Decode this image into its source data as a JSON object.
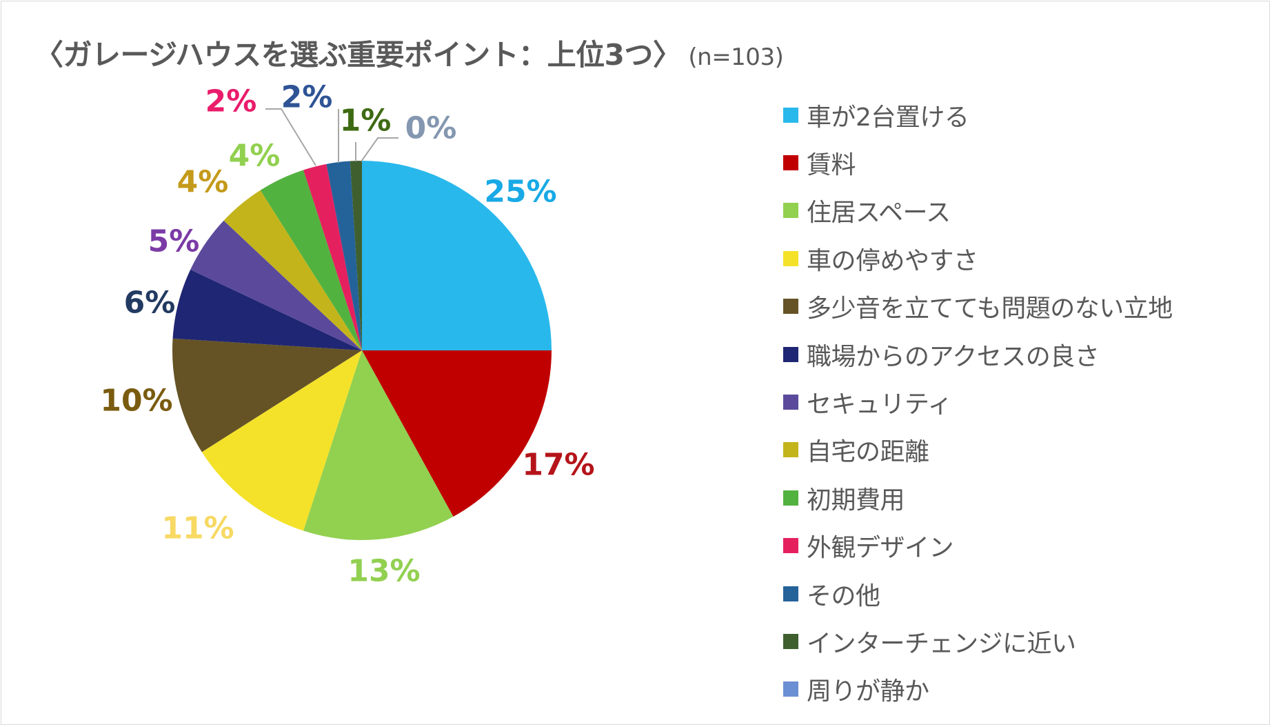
{
  "chart_data": {
    "type": "pie",
    "title": "〈ガレージハウスを選ぶ重要ポイント：上位3つ〉",
    "subtitle": "(n=103)",
    "categories": [
      "車が2台置ける",
      "賃料",
      "住居スペース",
      "車の停めやすさ",
      "多少音を立てても問題のない立地",
      "職場からのアクセスの良さ",
      "セキュリティ",
      "自宅の距離",
      "初期費用",
      "外観デザイン",
      "その他",
      "インターチェンジに近い",
      "周りが静か"
    ],
    "values": [
      25,
      17,
      13,
      11,
      10,
      6,
      5,
      4,
      4,
      2,
      2,
      1,
      0
    ],
    "labels": [
      "25%",
      "17%",
      "13%",
      "11%",
      "10%",
      "6%",
      "5%",
      "4%",
      "4%",
      "2%",
      "2%",
      "1%",
      "0%"
    ],
    "colors": [
      "#29b8ec",
      "#c00000",
      "#92d050",
      "#f4e22a",
      "#655325",
      "#1f2673",
      "#5b4a9b",
      "#c4b41c",
      "#52b23f",
      "#e5205f",
      "#24629a",
      "#3f5f2f",
      "#6a8fd3"
    ],
    "label_colors": [
      "#18a9e6",
      "#b5141a",
      "#92d050",
      "#f7d963",
      "#7a5c10",
      "#223a62",
      "#7b3ba6",
      "#c49a1a",
      "#92d050",
      "#ea1c6b",
      "#2f5496",
      "#3e6b12",
      "#8497b0"
    ],
    "legend_position": "right"
  }
}
